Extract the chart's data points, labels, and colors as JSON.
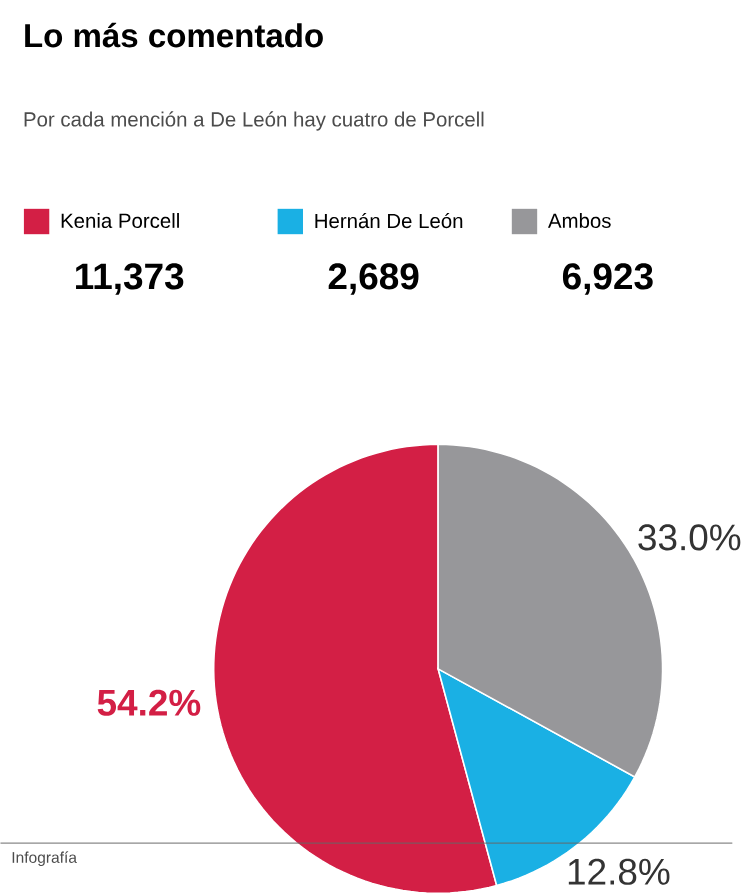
{
  "chart_data": {
    "type": "pie",
    "title": "Lo más comentado",
    "subtitle": "Por cada mención a De León hay cuatro de Porcell",
    "categories": [
      "Kenia Porcell",
      "Hernán De León",
      "Ambos"
    ],
    "values": [
      54.2,
      12.8,
      33.0
    ],
    "value_labels": [
      "54.2%",
      "12.8%",
      "33.0%"
    ],
    "colors": [
      "#d31f45",
      "#1ab0e4",
      "#97979a"
    ],
    "legend": "top",
    "annotations": [
      "11,373",
      "2,689",
      "6,923",
      "Infografía"
    ]
  }
}
